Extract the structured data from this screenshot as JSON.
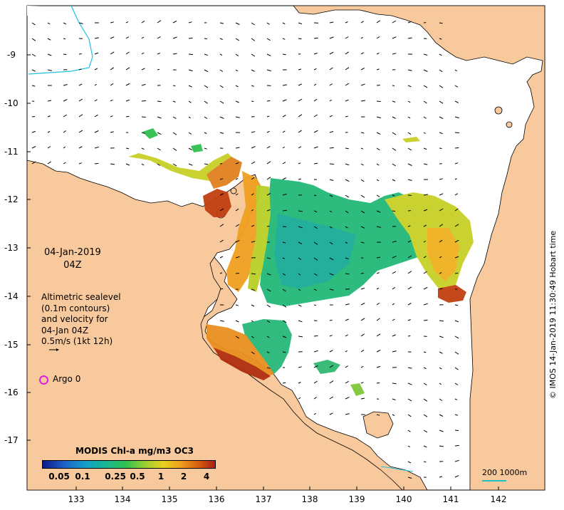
{
  "map": {
    "date": "04-Jan-2019",
    "time": "04Z",
    "legend_lines": [
      "Altimetric sealevel",
      "(0.1m contours)",
      "and velocity for",
      "04-Jan 04Z",
      "0.5m/s (1kt 12h)"
    ],
    "argo_label": "Argo 0",
    "credit": "© IMOS 14-Jan-2019 11:30:49 Hobart time",
    "scale_label": "200  1000m",
    "colorbar_title": "MODIS Chl-a mg/m3 OC3",
    "colorbar_ticks": [
      "0.05",
      "0.1",
      "0.25",
      "0.5",
      "1",
      "2",
      "4"
    ],
    "lon_ticks": [
      "133",
      "134",
      "135",
      "136",
      "137",
      "138",
      "139",
      "140",
      "141",
      "142"
    ],
    "lat_ticks": [
      "-9",
      "-10",
      "-11",
      "-12",
      "-13",
      "-14",
      "-15",
      "-16",
      "-17"
    ],
    "colors": {
      "land": "#f8c99c",
      "ocean": "#ffffff",
      "coast": "#000000",
      "argo": "#e020e0",
      "isobath": "#20c0e0",
      "colorbar": [
        "#0a1a8a",
        "#1c5fc8",
        "#14a0c8",
        "#18b890",
        "#30c050",
        "#a0d030",
        "#e8d020",
        "#f0a020",
        "#d86010",
        "#a82010"
      ]
    }
  }
}
